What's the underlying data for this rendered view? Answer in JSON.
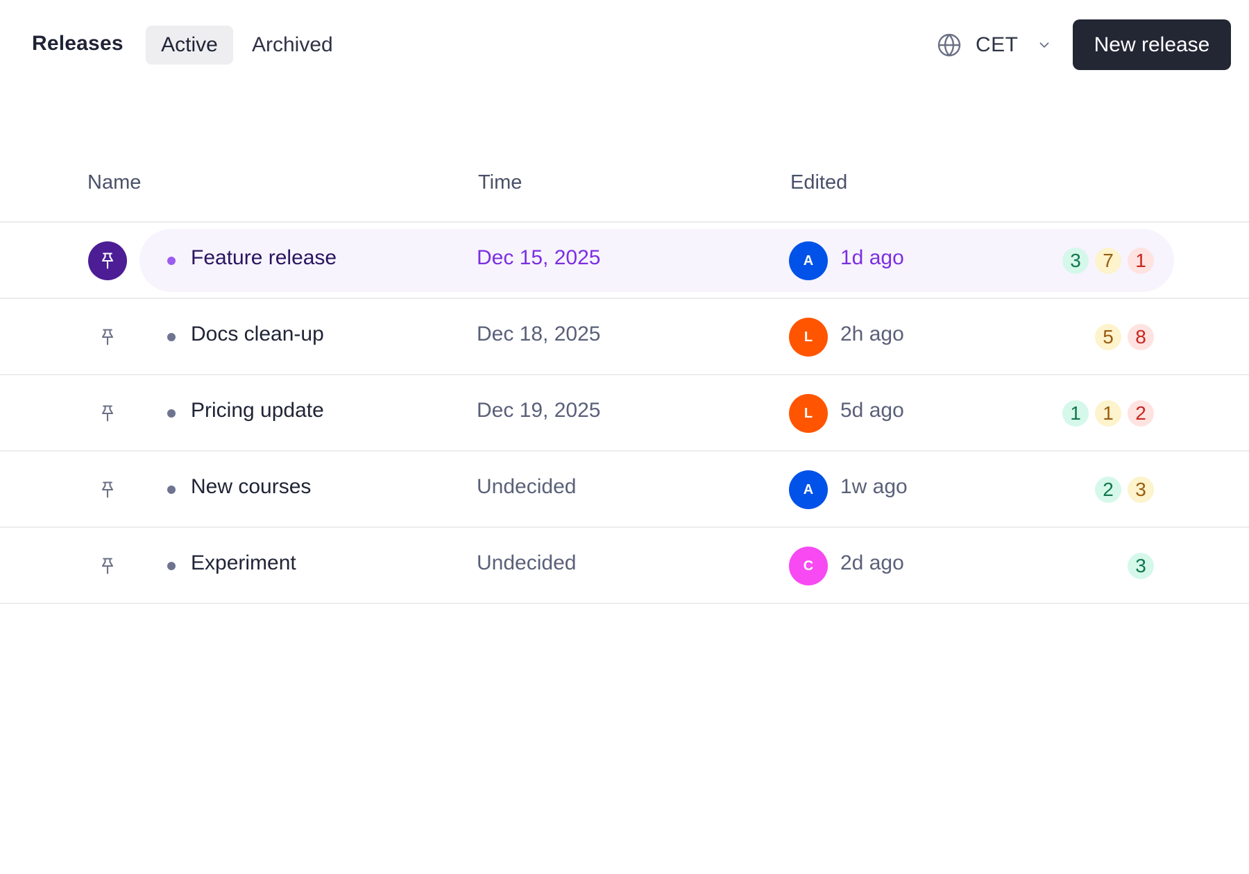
{
  "header": {
    "title": "Releases",
    "tabs": [
      {
        "label": "Active",
        "active": true
      },
      {
        "label": "Archived",
        "active": false
      }
    ],
    "timezone": {
      "icon": "globe-icon",
      "value": "CET",
      "chevron": "chevron-down-icon"
    },
    "new_release_label": "New release"
  },
  "table": {
    "columns": [
      "Name",
      "Time",
      "Edited"
    ],
    "rows": [
      {
        "name": "Feature release",
        "time": "Dec 15, 2025",
        "avatar": {
          "initial": "A",
          "color": "#0052e8"
        },
        "edited": "1d ago",
        "pinned": true,
        "highlighted": true,
        "badges": [
          {
            "value": "3",
            "tone": "green"
          },
          {
            "value": "7",
            "tone": "yellow"
          },
          {
            "value": "1",
            "tone": "red"
          }
        ]
      },
      {
        "name": "Docs clean-up",
        "time": "Dec 18, 2025",
        "avatar": {
          "initial": "L",
          "color": "#ff5500"
        },
        "edited": "2h ago",
        "pinned": false,
        "highlighted": false,
        "badges": [
          {
            "value": "5",
            "tone": "yellow"
          },
          {
            "value": "8",
            "tone": "red"
          }
        ]
      },
      {
        "name": "Pricing update",
        "time": "Dec 19, 2025",
        "avatar": {
          "initial": "L",
          "color": "#ff5500"
        },
        "edited": "5d ago",
        "pinned": false,
        "highlighted": false,
        "badges": [
          {
            "value": "1",
            "tone": "green"
          },
          {
            "value": "1",
            "tone": "yellow"
          },
          {
            "value": "2",
            "tone": "red"
          }
        ]
      },
      {
        "name": "New courses",
        "time": "Undecided",
        "avatar": {
          "initial": "A",
          "color": "#0052e8"
        },
        "edited": "1w ago",
        "pinned": false,
        "highlighted": false,
        "badges": [
          {
            "value": "2",
            "tone": "green"
          },
          {
            "value": "3",
            "tone": "yellow"
          }
        ]
      },
      {
        "name": "Experiment",
        "time": "Undecided",
        "avatar": {
          "initial": "C",
          "color": "#f74af2"
        },
        "edited": "2d ago",
        "pinned": false,
        "highlighted": false,
        "badges": [
          {
            "value": "3",
            "tone": "green"
          }
        ]
      }
    ]
  },
  "colors": {
    "accent_purple": "#7c2fe0",
    "pinned_bg": "#4c1d95",
    "highlight_row_bg": "#f7f4fe",
    "primary_button_bg": "#232633",
    "badge_green": "#d5f8eb",
    "badge_yellow": "#fdf3cc",
    "badge_red": "#fee3e1"
  }
}
